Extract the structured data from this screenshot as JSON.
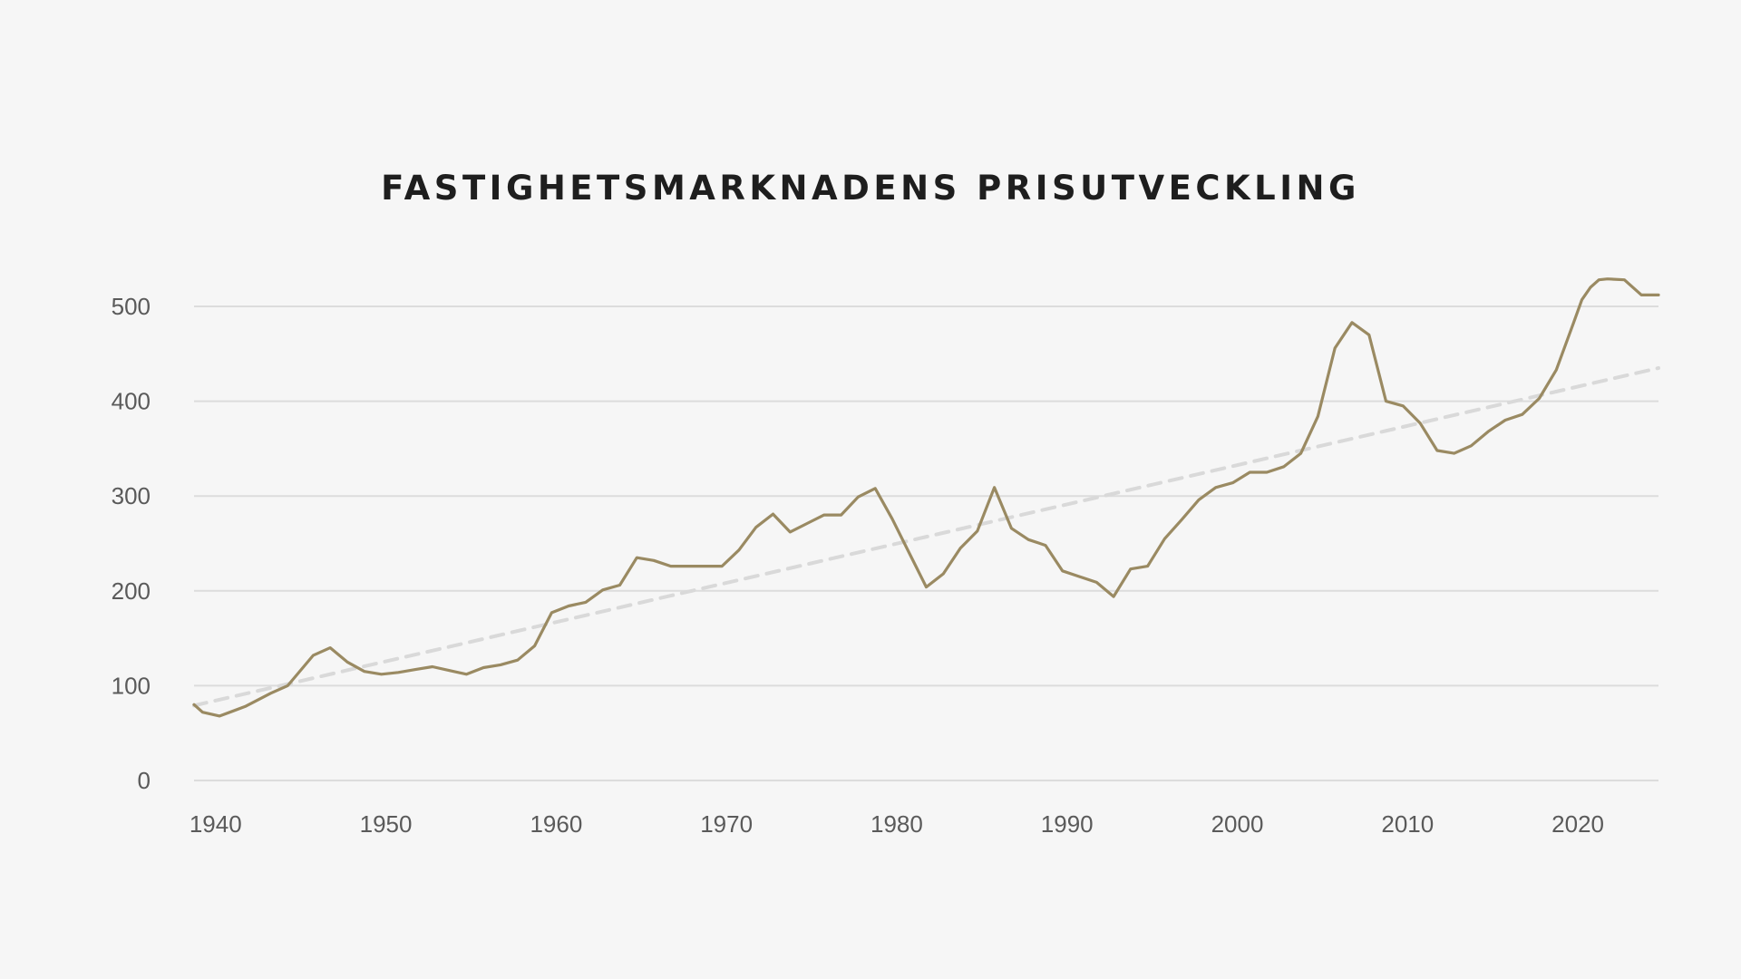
{
  "chart_data": {
    "type": "line",
    "title": "FASTIGHETSMARKNADENS PRISUTVECKLING",
    "xlabel": "",
    "ylabel": "",
    "xlim": [
      1939,
      2025
    ],
    "ylim": [
      0,
      500
    ],
    "x_ticks": [
      1940,
      1950,
      1960,
      1970,
      1980,
      1990,
      2000,
      2010,
      2020
    ],
    "y_ticks": [
      0,
      100,
      200,
      300,
      400,
      500
    ],
    "grid": true,
    "legend": "none",
    "colors": {
      "series": "#9a8a62",
      "trend": "#d9d9d9",
      "grid": "#dcdcdc",
      "text": "#5a5a5a",
      "title": "#1e1e1e"
    },
    "series": [
      {
        "x": [
          1939,
          1939.5,
          1940.5,
          1942,
          1943.5,
          1944.5,
          1946,
          1947,
          1948,
          1949,
          1950,
          1951,
          1952,
          1953,
          1954,
          1955,
          1956,
          1957,
          1958,
          1959,
          1960,
          1961,
          1962,
          1963,
          1964,
          1965,
          1966,
          1967,
          1968,
          1969,
          1970,
          1971,
          1972,
          1973,
          1974,
          1975,
          1976,
          1977,
          1978,
          1979,
          1980,
          1981,
          1982,
          1983,
          1984,
          1985,
          1986,
          1987,
          1988,
          1989,
          1990,
          1991,
          1992,
          1993,
          1994,
          1995,
          1996,
          1997,
          1998,
          1999,
          2000,
          2001,
          2002,
          2003,
          2004,
          2005,
          2006,
          2007,
          2008,
          2009,
          2010,
          2011,
          2012,
          2013,
          2014,
          2015,
          2016,
          2017,
          2018,
          2019,
          2020,
          2020.5,
          2021,
          2021.5,
          2022,
          2023,
          2024,
          2025
        ],
        "values": [
          80,
          72,
          68,
          78,
          92,
          100,
          132,
          140,
          125,
          115,
          112,
          114,
          117,
          120,
          116,
          112,
          119,
          122,
          127,
          142,
          177,
          184,
          188,
          201,
          206,
          235,
          232,
          226,
          226,
          226,
          226,
          243,
          267,
          281,
          262,
          271,
          280,
          280,
          299,
          308,
          276,
          240,
          204,
          218,
          245,
          263,
          309,
          266,
          254,
          248,
          221,
          215,
          209,
          194,
          223,
          226,
          255,
          275,
          296,
          309,
          314,
          325,
          325,
          331,
          345,
          384,
          456,
          483,
          470,
          400,
          395,
          377,
          348,
          345,
          353,
          368,
          380,
          386,
          403,
          433,
          482,
          507,
          520,
          528,
          529,
          528,
          512,
          512
        ]
      }
    ],
    "trend": {
      "style": "dashed",
      "x": [
        1939,
        2025
      ],
      "values": [
        79,
        435
      ]
    }
  }
}
